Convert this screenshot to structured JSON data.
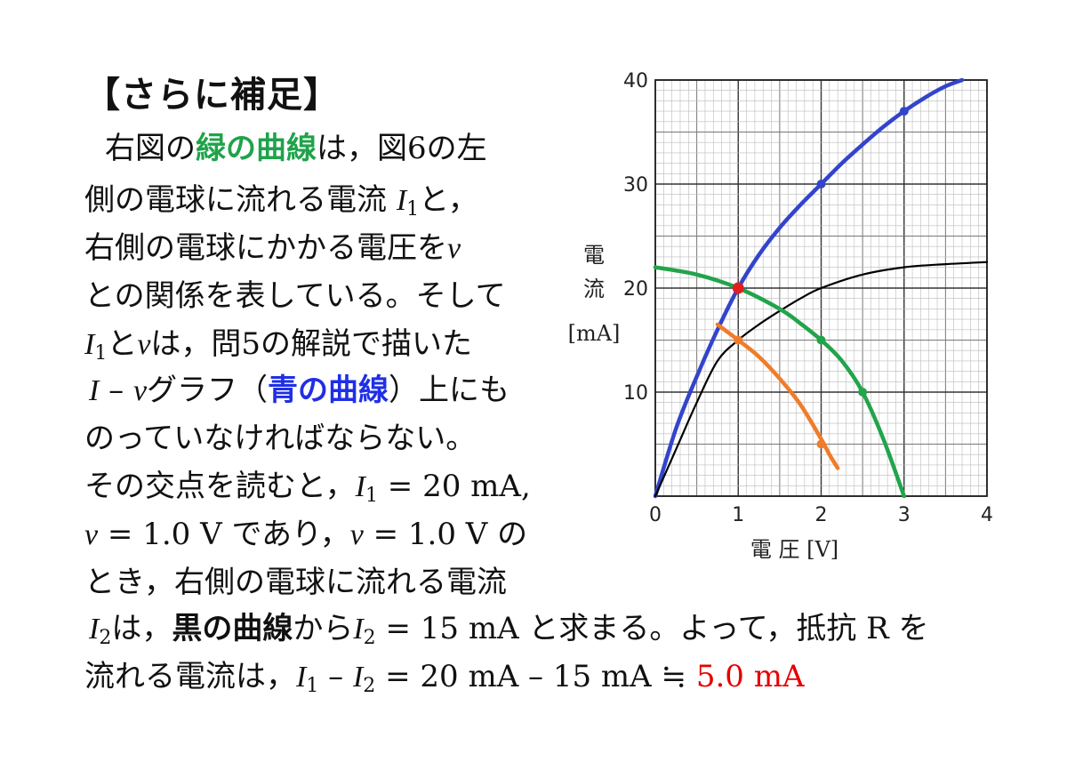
{
  "heading": "【さらに補足】",
  "text": {
    "l1a": "右図の",
    "l1b": "緑の曲線",
    "l1c": "は，図6の左",
    "l2a": "側の電球に流れる電流 ",
    "l2var": "I",
    "l2sub": "1",
    "l2b": "と，",
    "l3a": "右側の電球にかかる電圧を",
    "l3var": "v",
    "l4": "との関係を表している。そして",
    "l5var1": "I",
    "l5sub": "1",
    "l5a": "と",
    "l5var2": "v",
    "l5b": "は，問5の解説で描いた",
    "l6var1": "I",
    "l6a": " – ",
    "l6var2": "v",
    "l6b": "グラフ（",
    "l6c": "青の曲線",
    "l6d": "）上にも",
    "l7": "のっていなければならない。",
    "l8a": "その交点を読むと，",
    "l8var": "I",
    "l8sub": "1",
    "l8b": " = 20 mA,",
    "l9var1": "v",
    "l9a": " = 1.0 V であり，",
    "l9var2": "v",
    "l9b": " = 1.0 V の",
    "l10": "とき，右側の電球に流れる電流",
    "l11var": "I",
    "l11sub": "2",
    "l11a": "は，",
    "l11b": "黒の曲線",
    "l11c": "から",
    "l11var2": "I",
    "l11sub2": "2",
    "l11d": " = 15 mA と求まる。よって，抵抗 R を",
    "l12a": "流れる電流は，",
    "l12var1": "I",
    "l12sub1": "1",
    "l12b": " – ",
    "l12var2": "I",
    "l12sub2": "2",
    "l12c": " = 20 mA – 15 mA ≒ ",
    "l12d": "5.0 mA"
  },
  "chart_data": {
    "type": "line",
    "xlabel": "電 圧 [V]",
    "ylabel": [
      "電",
      "流",
      "[mA]"
    ],
    "xlim": [
      0,
      4
    ],
    "ylim": [
      0,
      40
    ],
    "xticks": [
      "0",
      "1",
      "2",
      "3",
      "4"
    ],
    "yticks": [
      "10",
      "20",
      "30",
      "40"
    ],
    "grid": true,
    "series": [
      {
        "color": "#3344cc",
        "x": [
          0,
          0.25,
          0.5,
          0.75,
          1.0,
          1.25,
          1.5,
          1.75,
          2.0,
          2.25,
          2.5,
          2.75,
          3.0,
          3.25,
          3.5,
          3.7
        ],
        "y": [
          0,
          6.5,
          11.5,
          16,
          20,
          23.2,
          25.8,
          28.0,
          30.0,
          32.0,
          33.8,
          35.5,
          37.0,
          38.3,
          39.4,
          40.0
        ],
        "markers": [
          [
            1.0,
            20
          ],
          [
            2.0,
            30
          ],
          [
            3.0,
            37
          ]
        ]
      },
      {
        "color": "#000000",
        "x": [
          0,
          0.25,
          0.5,
          0.75,
          1.0,
          1.25,
          1.5,
          1.75,
          2.0,
          2.5,
          3.0,
          3.5,
          4.0
        ],
        "y": [
          0,
          4.5,
          9.0,
          13.0,
          15.0,
          16.5,
          17.8,
          19.0,
          20.0,
          21.3,
          22.0,
          22.3,
          22.5
        ]
      },
      {
        "color": "#22a44b",
        "x": [
          0,
          0.5,
          1.0,
          1.5,
          1.75,
          2.0,
          2.25,
          2.5,
          2.75,
          3.0
        ],
        "y": [
          22,
          21.3,
          20,
          18,
          16.6,
          15,
          13,
          10,
          5.5,
          0
        ],
        "markers": [
          [
            2.0,
            15
          ],
          [
            2.5,
            10
          ]
        ]
      },
      {
        "color": "#f07c2a",
        "x": [
          0.75,
          1.0,
          1.25,
          1.5,
          1.75,
          2.0,
          2.1,
          2.2
        ],
        "y": [
          16.5,
          15,
          13.4,
          11.3,
          8.8,
          5.5,
          4.0,
          2.7
        ],
        "markers": [
          [
            1.0,
            15
          ],
          [
            2.0,
            5
          ]
        ]
      }
    ],
    "intersection": {
      "x": 1.0,
      "y": 20,
      "color": "#e02020"
    }
  }
}
